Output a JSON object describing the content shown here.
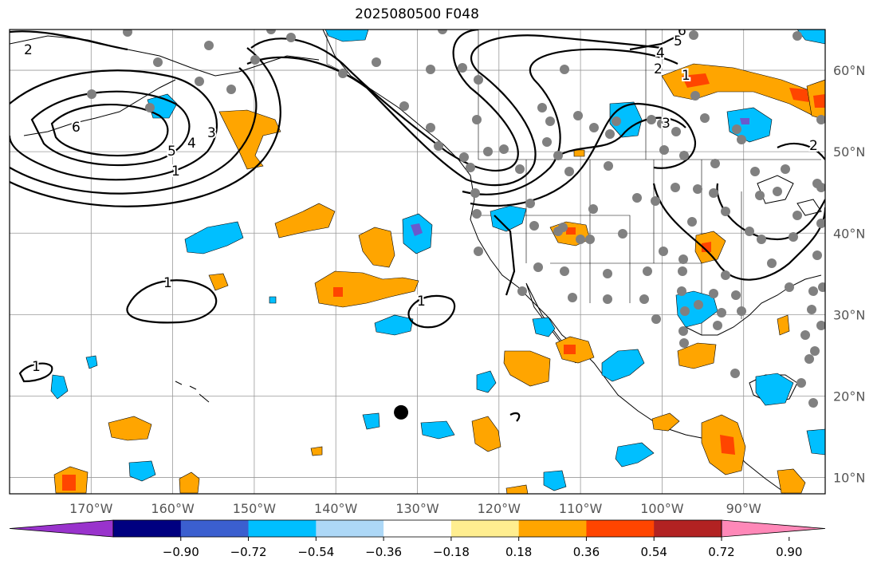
{
  "title": "2025080500 F048",
  "map": {
    "projection": "equirectangular",
    "lon_range": [
      -180,
      -80
    ],
    "lat_range": [
      8,
      65
    ],
    "lon_ticks": [
      {
        "lon": -170,
        "label": "170°W"
      },
      {
        "lon": -160,
        "label": "160°W"
      },
      {
        "lon": -150,
        "label": "150°W"
      },
      {
        "lon": -140,
        "label": "140°W"
      },
      {
        "lon": -130,
        "label": "130°W"
      },
      {
        "lon": -120,
        "label": "120°W"
      },
      {
        "lon": -110,
        "label": "110°W"
      },
      {
        "lon": -100,
        "label": "100°W"
      },
      {
        "lon": -90,
        "label": "90°W"
      }
    ],
    "lat_ticks": [
      {
        "lat": 60,
        "label": "60°N"
      },
      {
        "lat": 50,
        "label": "50°N"
      },
      {
        "lat": 40,
        "label": "40°N"
      },
      {
        "lat": 30,
        "label": "30°N"
      },
      {
        "lat": 20,
        "label": "20°N"
      },
      {
        "lat": 10,
        "label": "10°N"
      }
    ],
    "grid": true,
    "contour_labels": [
      "2",
      "6",
      "5",
      "4",
      "3",
      "1",
      "1",
      "1",
      "1",
      "2",
      "4",
      "5",
      "6",
      "3",
      "1",
      "2"
    ],
    "marker_black": {
      "lon": -132,
      "lat": 18
    }
  },
  "colorbar": {
    "ticks": [
      "−0.90",
      "−0.72",
      "−0.54",
      "−0.36",
      "−0.18",
      "0.18",
      "0.36",
      "0.54",
      "0.72",
      "0.90"
    ],
    "colors": [
      "#9933cc",
      "#000080",
      "#3b5fcf",
      "#00bfff",
      "#add8f7",
      "#ffffff",
      "#ffee90",
      "#ffa500",
      "#ff4500",
      "#b22222",
      "#ff88b8"
    ]
  },
  "legend_colors": {
    "neg_strong": "#00bfff",
    "neg_very": "#6a5acd",
    "pos_mid": "#ffa500",
    "pos_strong": "#ff4500",
    "pos_weak": "#ffee90",
    "station": "#808080"
  }
}
